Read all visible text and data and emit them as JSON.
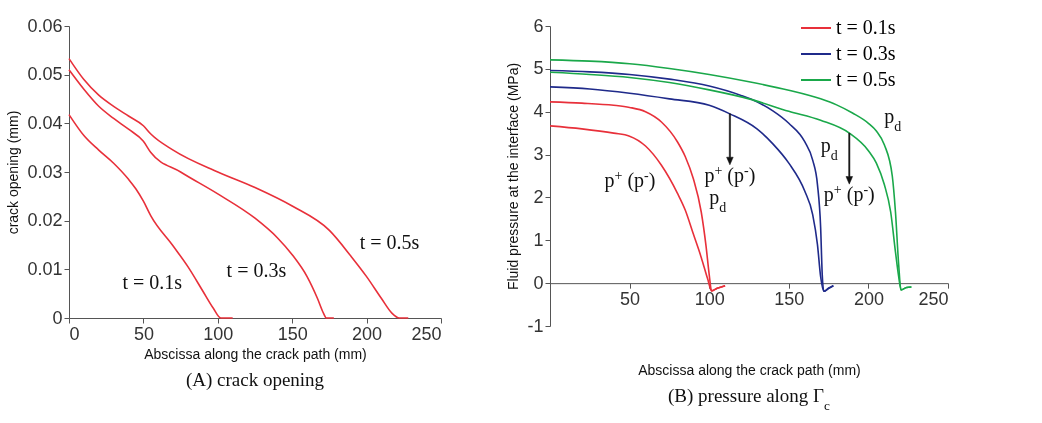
{
  "chart_data": [
    {
      "type": "line",
      "title": "(A) crack opening",
      "xlabel": "Abscissa along the crack path (mm)",
      "ylabel": "crack opening (mm)",
      "xlim": [
        0,
        250
      ],
      "ylim": [
        0,
        0.06
      ],
      "xticks": [
        0,
        50,
        100,
        150,
        200,
        250
      ],
      "yticks": [
        0,
        0.01,
        0.02,
        0.03,
        0.04,
        0.05,
        0.06
      ],
      "series": [
        {
          "color": "#e8303a",
          "x": [
            0,
            10,
            20,
            30,
            40,
            45,
            50,
            55,
            70,
            80,
            90,
            97,
            102,
            110
          ],
          "values": [
            0.0418,
            0.0375,
            0.0345,
            0.0318,
            0.0285,
            0.0265,
            0.024,
            0.021,
            0.0148,
            0.0105,
            0.0055,
            0.002,
            0,
            0
          ]
        },
        {
          "color": "#e8303a",
          "x": [
            0,
            10,
            20,
            30,
            40,
            50,
            55,
            75,
            100,
            125,
            140,
            150,
            160,
            167,
            171,
            173,
            178
          ],
          "values": [
            0.051,
            0.047,
            0.0435,
            0.041,
            0.0388,
            0.0363,
            0.034,
            0.03,
            0.0255,
            0.0205,
            0.0165,
            0.013,
            0.0085,
            0.004,
            0.001,
            0,
            0
          ]
        },
        {
          "color": "#e8303a",
          "x": [
            0,
            10,
            20,
            30,
            40,
            50,
            55,
            70,
            100,
            125,
            150,
            175,
            190,
            200,
            210,
            217,
            222,
            228
          ],
          "values": [
            0.0533,
            0.049,
            0.0458,
            0.0435,
            0.0415,
            0.0395,
            0.0378,
            0.0345,
            0.03,
            0.0268,
            0.023,
            0.018,
            0.0125,
            0.0085,
            0.004,
            0.001,
            0,
            0
          ]
        }
      ],
      "annotations": [
        "t = 0.1s",
        "t = 0.3s",
        "t = 0.5s"
      ]
    },
    {
      "type": "line",
      "title": "(B) pressure along Γ$_{c}$",
      "xlabel": "Abscissa along the crack path (mm)",
      "ylabel": "Fluid pressure at the interface (MPa)",
      "xlim": [
        0,
        250
      ],
      "ylim": [
        -1,
        6
      ],
      "xticks": [
        50,
        100,
        150,
        200,
        250
      ],
      "yticks": [
        -1,
        0,
        1,
        2,
        3,
        4,
        5,
        6
      ],
      "legend": "top right",
      "series": [
        {
          "name": "t = 0.1s",
          "color": "#e8303a",
          "x": [
            0,
            20,
            40,
            50,
            60,
            70,
            80,
            85,
            90,
            95,
            98,
            100,
            101.5,
            105,
            110
          ],
          "values": [
            4.23,
            4.2,
            4.15,
            4.1,
            4.0,
            3.76,
            3.3,
            2.95,
            2.44,
            1.66,
            0.87,
            0.2,
            -0.18,
            -0.12,
            -0.06
          ]
        },
        {
          "color": "#e8303a",
          "x": [
            0,
            20,
            40,
            50,
            60,
            70,
            80,
            85,
            90,
            95,
            99,
            101.5,
            105,
            110
          ],
          "values": [
            3.67,
            3.6,
            3.5,
            3.43,
            3.2,
            2.75,
            2.1,
            1.7,
            1.15,
            0.6,
            0.1,
            -0.18,
            -0.12,
            -0.06
          ]
        },
        {
          "name": "t = 0.3s",
          "color": "#1f2a8a",
          "x": [
            0,
            25,
            50,
            75,
            100,
            120,
            130,
            140,
            150,
            160,
            165,
            168,
            170,
            171,
            172,
            175,
            178
          ],
          "values": [
            4.96,
            4.93,
            4.87,
            4.76,
            4.6,
            4.38,
            4.23,
            4.02,
            3.73,
            3.3,
            2.87,
            2.3,
            1.3,
            0.2,
            -0.19,
            -0.12,
            -0.06
          ]
        },
        {
          "color": "#1f2a8a",
          "x": [
            0,
            25,
            50,
            75,
            100,
            113,
            130,
            140,
            150,
            160,
            165,
            168,
            170,
            172,
            175,
            178
          ],
          "values": [
            4.58,
            4.53,
            4.43,
            4.3,
            4.15,
            3.95,
            3.6,
            3.25,
            2.8,
            2.15,
            1.6,
            0.9,
            0.15,
            -0.19,
            -0.12,
            -0.06
          ]
        },
        {
          "name": "t = 0.5s",
          "color": "#1aa84a",
          "x": [
            0,
            25,
            50,
            75,
            100,
            125,
            150,
            170,
            180,
            190,
            200,
            205,
            210,
            215,
            217,
            219,
            220.5,
            224,
            227
          ],
          "values": [
            5.21,
            5.18,
            5.12,
            5.01,
            4.87,
            4.7,
            4.5,
            4.3,
            4.16,
            3.97,
            3.73,
            3.55,
            3.23,
            2.5,
            1.66,
            0.44,
            -0.16,
            -0.1,
            -0.09
          ]
        },
        {
          "color": "#1aa84a",
          "x": [
            0,
            25,
            50,
            75,
            100,
            125,
            150,
            170,
            188,
            200,
            205,
            210,
            214,
            217,
            219,
            220.5,
            224,
            227
          ],
          "values": [
            4.92,
            4.87,
            4.8,
            4.68,
            4.51,
            4.3,
            4.01,
            3.8,
            3.5,
            3.09,
            2.8,
            2.3,
            1.66,
            0.73,
            0.16,
            -0.16,
            -0.1,
            -0.09
          ]
        }
      ],
      "annotations": [
        "p$_{d}$",
        "p$^{+}$ (p$^{-}$)",
        "p$_{d}$",
        {
          "text": "p$^{+}$ (p$^{-}$)",
          "x": 113,
          "y": 3.95
        },
        "p$_{d}$",
        {
          "text": "p$^{+}$ (p$^{-}$)",
          "x": 188,
          "y": 3.5
        }
      ]
    }
  ]
}
